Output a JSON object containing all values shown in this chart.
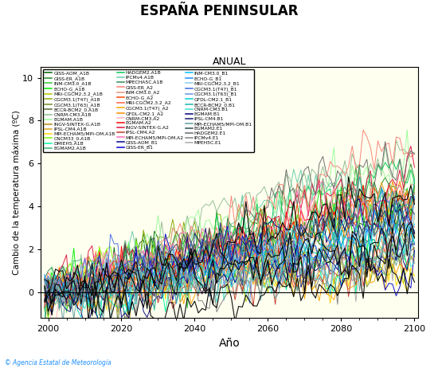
{
  "title": "ESPAÑA PENINSULAR",
  "subtitle": "ANUAL",
  "xlabel": "Año",
  "ylabel": "Cambio de la temperatura máxima (ºC)",
  "xlim": [
    1998,
    2101
  ],
  "ylim": [
    -1.2,
    10.5
  ],
  "yticks": [
    0,
    2,
    4,
    6,
    8,
    10
  ],
  "xticks": [
    2000,
    2020,
    2040,
    2060,
    2080,
    2100
  ],
  "copyright_text": "© Agencia Estatal de Meteorología",
  "background_color": "#fffff0",
  "figsize": [
    5.5,
    4.62
  ],
  "dpi": 100,
  "legend_entries": [
    {
      "label": "GISS-AOM_A1B",
      "color": "#006400"
    },
    {
      "label": "GISS-ER_A1B",
      "color": "#228B22"
    },
    {
      "label": "INM-CM3.0_A1B",
      "color": "#32CD32"
    },
    {
      "label": "ECHO-G_A1B",
      "color": "#00EE00"
    },
    {
      "label": "MRI-CGCM2.3.2_A1B",
      "color": "#AACC00"
    },
    {
      "label": "CGCM3.1(T47)_A1B",
      "color": "#88AA00"
    },
    {
      "label": "CGCM3.1(T63)_A1B",
      "color": "#6B8E23"
    },
    {
      "label": "BCCR-BCM2_0.A1B",
      "color": "#556B2F"
    },
    {
      "label": "CNRM-CM3.A1B",
      "color": "#8FBC8F"
    },
    {
      "label": "EGMAM.A1B",
      "color": "#98FB98"
    },
    {
      "label": "INGV-SINTEX-G.A1B",
      "color": "#B8860B"
    },
    {
      "label": "IPSL-CM4.A1B",
      "color": "#DAA520"
    },
    {
      "label": "MPI-ECHAM5/MPI-OM.A1B",
      "color": "#FFD700"
    },
    {
      "label": "CNCM33_0.A1B",
      "color": "#7CFC00"
    },
    {
      "label": "DMIEH5.A1B",
      "color": "#00FA9A"
    },
    {
      "label": "EGMAM2.A1B",
      "color": "#3CB371"
    },
    {
      "label": "HADGEM2.A1B",
      "color": "#00CC55"
    },
    {
      "label": "IPCMv4.A1B",
      "color": "#66CDAA"
    },
    {
      "label": "MPECHA5C.A1B",
      "color": "#2E8B57"
    },
    {
      "label": "GISS-ER_A2",
      "color": "#FA8072"
    },
    {
      "label": "INM-CM3.0_A2",
      "color": "#E9967A"
    },
    {
      "label": "ECHO-G_A2",
      "color": "#FF4500"
    },
    {
      "label": "MRI-CGCM2.3.2_A2",
      "color": "#FF6347"
    },
    {
      "label": "CGCM3.1(T47)_A2",
      "color": "#FFA500"
    },
    {
      "label": "GFDL-CM2.1_A2",
      "color": "#FF8C00"
    },
    {
      "label": "CNRM-CM3.A2",
      "color": "#FFB6C1"
    },
    {
      "label": "EGMAM.A2",
      "color": "#FF0000"
    },
    {
      "label": "INGV-SINTEX-G.A2",
      "color": "#DC143C"
    },
    {
      "label": "IPSL-CM4.A2",
      "color": "#C0392B"
    },
    {
      "label": "MPI-ECHAM5/MPI-OM.A2",
      "color": "#FF69B4"
    },
    {
      "label": "GISS-AOM_B1",
      "color": "#00008B"
    },
    {
      "label": "GISS-ER_B1",
      "color": "#0000CD"
    },
    {
      "label": "INM-CM3.0_B1",
      "color": "#00BFFF"
    },
    {
      "label": "ECHO-G_B1",
      "color": "#1E90FF"
    },
    {
      "label": "MRI-CGCM2.3.2_B1",
      "color": "#87CEEB"
    },
    {
      "label": "CGCM3.1(T47)_B1",
      "color": "#4169E1"
    },
    {
      "label": "CGCM3.1(T63)_B1",
      "color": "#6495ED"
    },
    {
      "label": "GFDL-CM2.1_B1",
      "color": "#00CED1"
    },
    {
      "label": "BCCR-BCM2_0.B1",
      "color": "#20B2AA"
    },
    {
      "label": "CNRM-CM3.B1",
      "color": "#40E0D0"
    },
    {
      "label": "EGMAM.B1",
      "color": "#000080"
    },
    {
      "label": "IPSL-CM4.B1",
      "color": "#191970"
    },
    {
      "label": "MPI-ECHAM5/MPI-OM.B1",
      "color": "#5F9EA0"
    },
    {
      "label": "EGMAM2.E1",
      "color": "#2F4F4F"
    },
    {
      "label": "HADGEM2.E1",
      "color": "#696969"
    },
    {
      "label": "IPCMv4.E1",
      "color": "#808080"
    },
    {
      "label": "MPEH5C.E1",
      "color": "#A9A9A9"
    }
  ]
}
